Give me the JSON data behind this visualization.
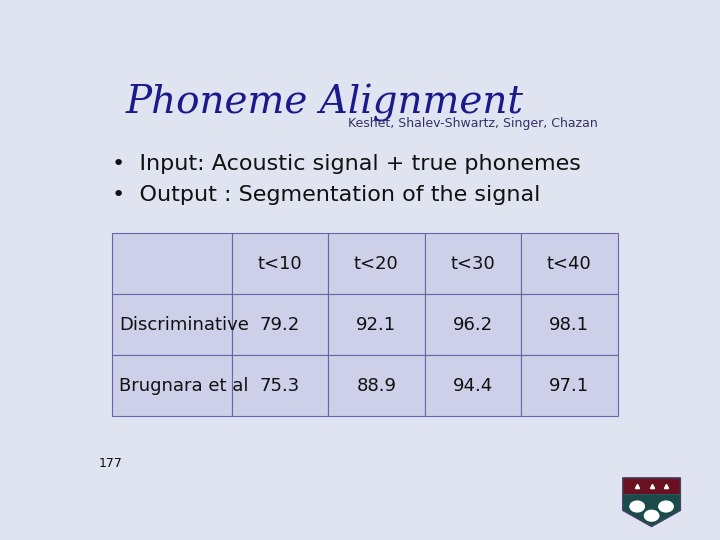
{
  "title": "Phoneme Alignment",
  "subtitle": "Keshet, Shalev-Shwartz, Singer, Chazan",
  "bullets": [
    "Input: Acoustic signal + true phonemes",
    "Output : Segmentation of the signal"
  ],
  "table_headers": [
    "",
    "t<10",
    "t<20",
    "t<30",
    "t<40"
  ],
  "table_rows": [
    [
      "Discriminative",
      "79.2",
      "92.1",
      "96.2",
      "98.1"
    ],
    [
      "Brugnara et al",
      "75.3",
      "88.9",
      "94.4",
      "97.1"
    ]
  ],
  "bg_color": "#e0e3f0",
  "title_color": "#1a1a8c",
  "subtitle_color": "#333366",
  "text_color": "#111111",
  "table_bg": "#cdd0e8",
  "table_border_color": "#6666aa",
  "slide_number": "177",
  "title_fontsize": 28,
  "subtitle_fontsize": 9,
  "bullet_fontsize": 16,
  "table_fontsize": 13
}
